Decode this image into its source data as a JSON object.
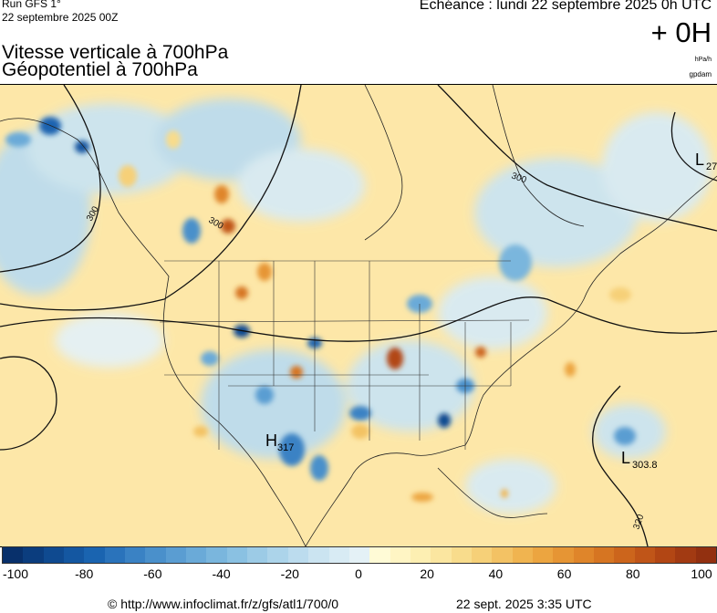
{
  "header": {
    "run": "Run GFS 1°",
    "run_date": "22 septembre 2025 00Z",
    "echeance": "Echéance : lundi 22 septembre 2025 0h UTC",
    "offset": "+ 0H",
    "title_line1": "Vitesse verticale à 700hPa",
    "title_line2": "Géopotentiel à 700hPa",
    "unit_primary": "hPa/h",
    "unit_secondary": "gpdam"
  },
  "map": {
    "contour_labels": [
      "300",
      "300",
      "300",
      "300",
      "300",
      "320"
    ],
    "systems": [
      {
        "type": "L",
        "value": "27"
      },
      {
        "type": "H",
        "value": "317"
      },
      {
        "type": "L",
        "value": "303.8"
      }
    ]
  },
  "colorbar": {
    "ticks": [
      "-100",
      "-80",
      "-60",
      "-40",
      "-20",
      "0",
      "20",
      "40",
      "60",
      "80",
      "100"
    ],
    "colors": [
      "#08306b",
      "#0b3d7e",
      "#0f4a90",
      "#1457a1",
      "#1a64b0",
      "#2a73bb",
      "#3a82c4",
      "#4a90cb",
      "#5a9dd2",
      "#6aaad8",
      "#7ab6dd",
      "#8ac1e2",
      "#9ccbe6",
      "#acd4ea",
      "#bcdcee",
      "#cbe4f1",
      "#d8ebf4",
      "#e4f1f6",
      "#fffbd6",
      "#fff5c4",
      "#fdefb2",
      "#fbe6a0",
      "#f8dc8c",
      "#f6d078",
      "#f3c264",
      "#f0b450",
      "#eca540",
      "#e69534",
      "#df852a",
      "#d67522",
      "#cc651c",
      "#c05518",
      "#b24614",
      "#a23a12",
      "#923010"
    ],
    "unit": "hPa/h"
  },
  "footer": {
    "credit": "© http://www.infoclimat.fr/z/gfs/atl1/700/0",
    "issued": "22 sept. 2025  3:35 UTC"
  }
}
